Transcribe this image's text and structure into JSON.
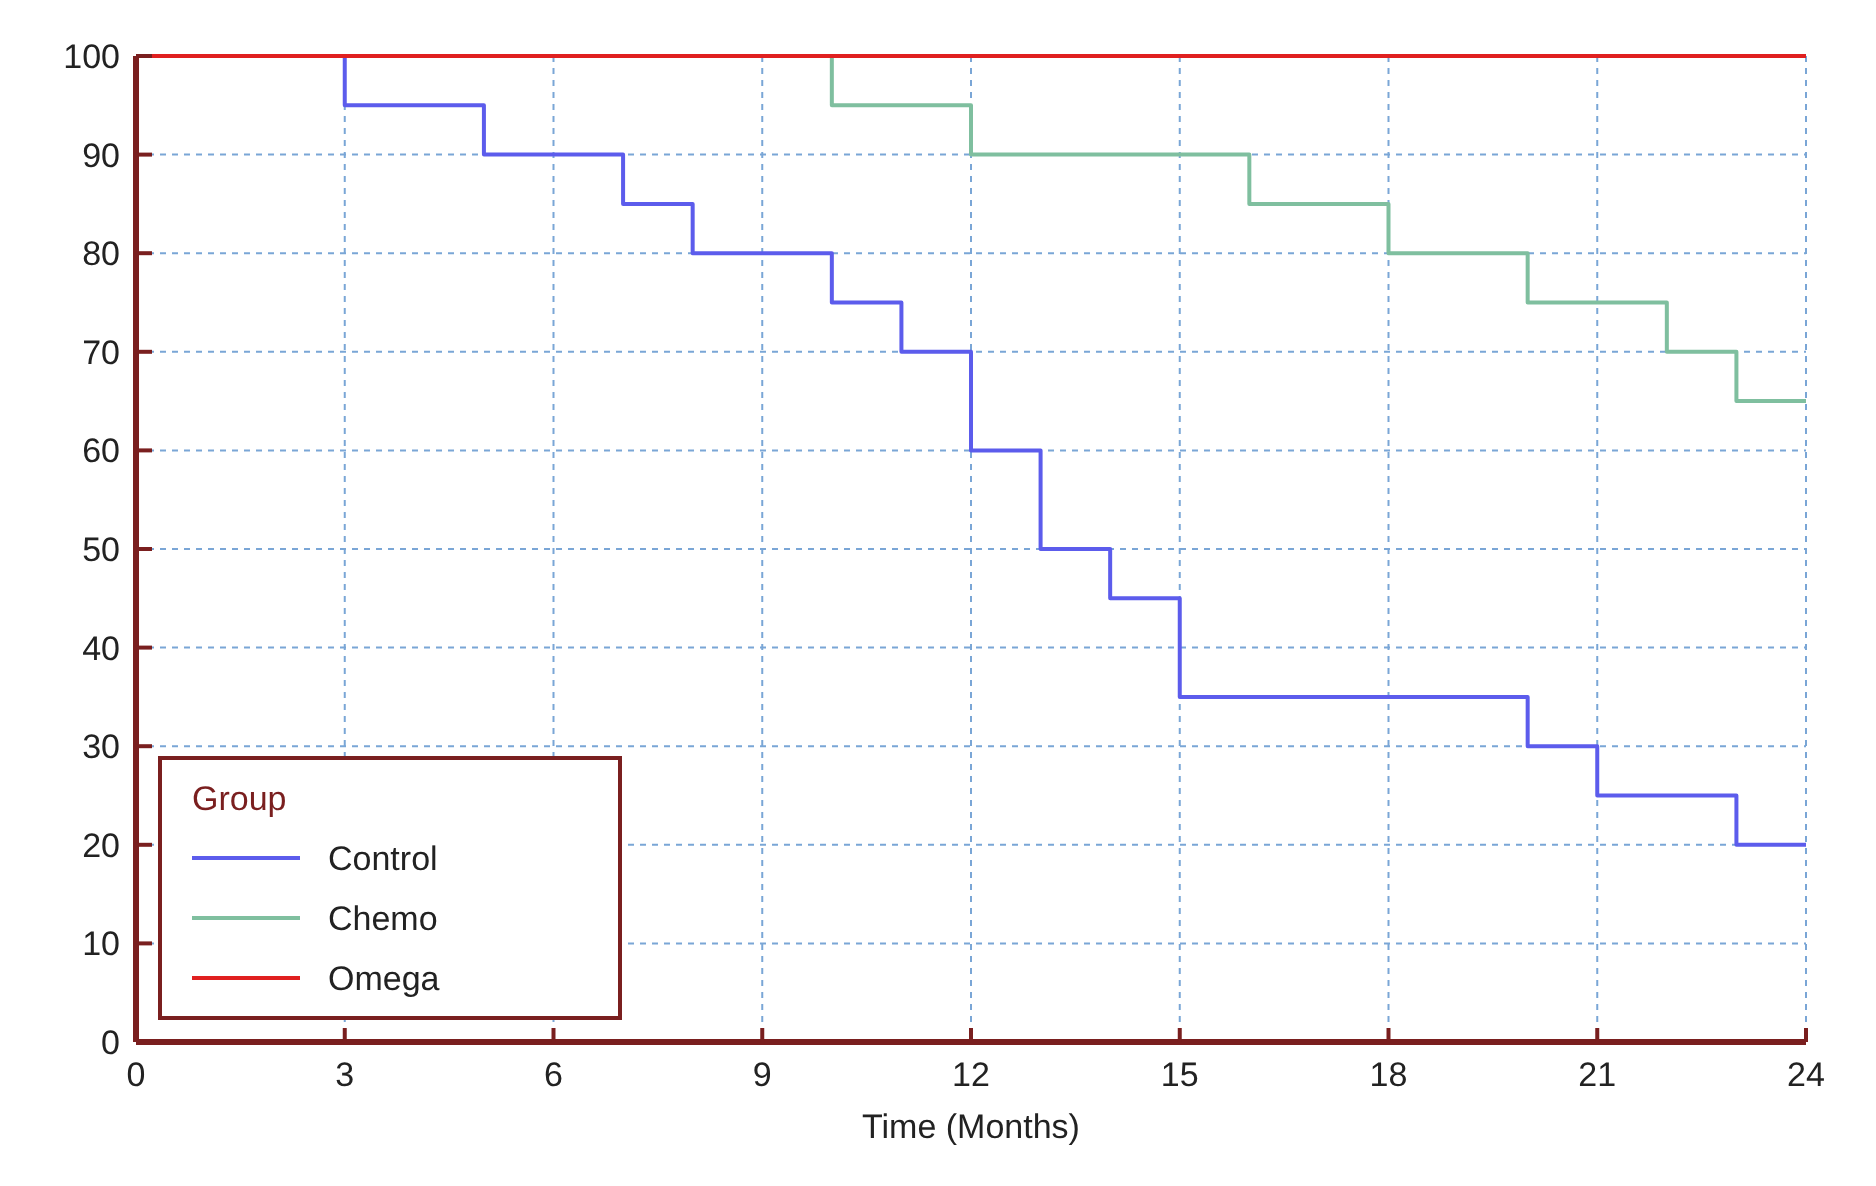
{
  "chart_data": {
    "type": "step",
    "xlabel": "Time (Months)",
    "legend_title": "Group",
    "xlim": [
      0,
      24
    ],
    "xticks": [
      0,
      3,
      6,
      9,
      12,
      15,
      18,
      21,
      24
    ],
    "ylim": [
      0,
      100
    ],
    "yticks": [
      0,
      10,
      20,
      30,
      40,
      50,
      60,
      70,
      80,
      90,
      100
    ],
    "grid": true,
    "legend": "bottom left",
    "marker": "none",
    "line_style": "solid",
    "series": [
      {
        "name": "Control",
        "color": "#5c5cec",
        "x": [
          0,
          3,
          5,
          7,
          8,
          10,
          11,
          12,
          13,
          14,
          15,
          20,
          21,
          23,
          24
        ],
        "values": [
          100,
          95,
          90,
          85,
          80,
          75,
          70,
          60,
          50,
          45,
          35,
          30,
          25,
          20,
          20
        ]
      },
      {
        "name": "Chemo",
        "color": "#7fbf9f",
        "x": [
          0,
          10,
          12,
          16,
          18,
          20,
          22,
          23,
          24
        ],
        "values": [
          100,
          95,
          90,
          85,
          80,
          75,
          70,
          65,
          65
        ]
      },
      {
        "name": "Omega",
        "color": "#e02020",
        "x": [
          0,
          24
        ],
        "values": [
          100,
          100
        ]
      }
    ]
  }
}
